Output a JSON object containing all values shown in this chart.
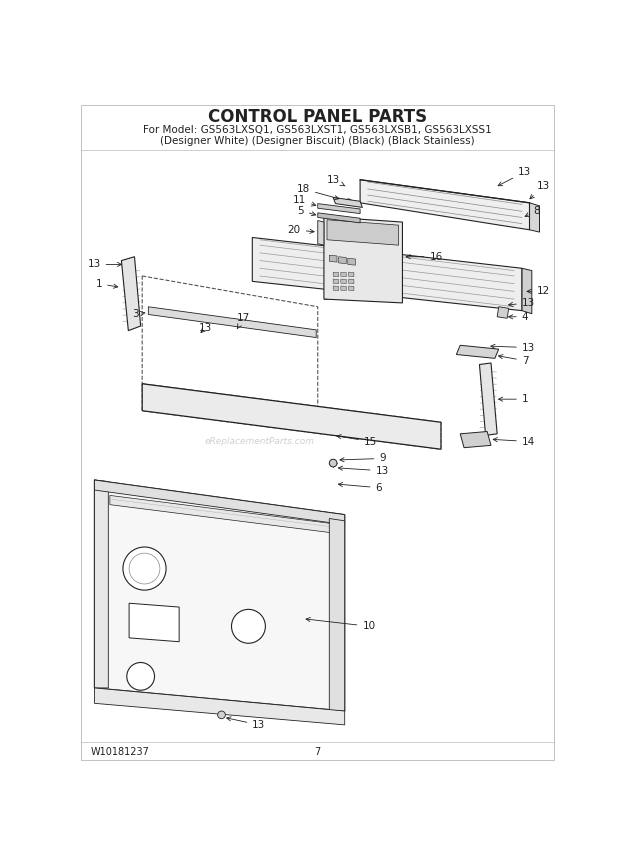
{
  "title": "CONTROL PANEL PARTS",
  "subtitle_line1": "For Model: GS563LXSQ1, GS563LXST1, GS563LXSB1, GS563LXSS1",
  "subtitle_line2": "(Designer White) (Designer Biscuit) (Black) (Black Stainless)",
  "footer_left": "W10181237",
  "footer_center": "7",
  "bg_color": "#ffffff",
  "line_color": "#222222",
  "watermark": "eReplacementParts.com"
}
